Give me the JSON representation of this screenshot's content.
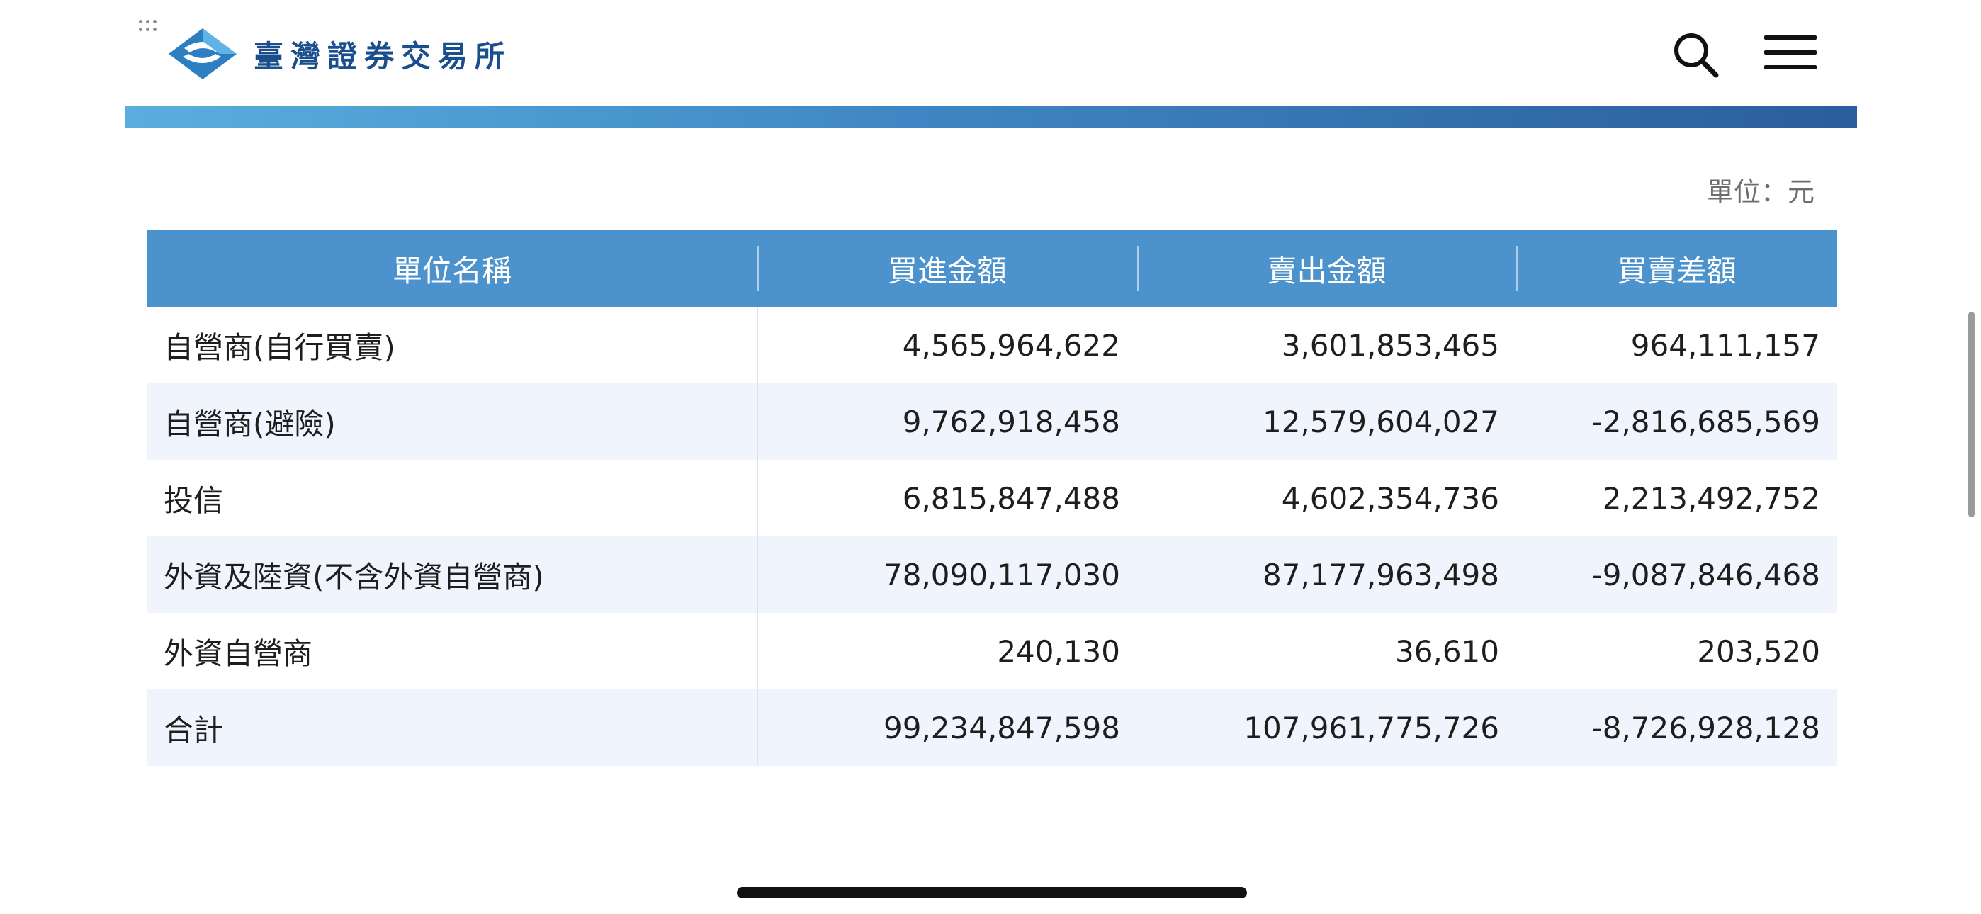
{
  "header": {
    "logo_text": "臺灣證券交易所",
    "logo_icon": "twse-logo-icon",
    "search_icon": "search-icon",
    "menu_icon": "hamburger-menu-icon"
  },
  "unit_label": "單位：元",
  "table": {
    "columns": [
      "單位名稱",
      "買進金額",
      "賣出金額",
      "買賣差額"
    ],
    "rows": [
      {
        "name": "自營商(自行買賣)",
        "buy": "4,565,964,622",
        "sell": "3,601,853,465",
        "diff": "964,111,157"
      },
      {
        "name": "自營商(避險)",
        "buy": "9,762,918,458",
        "sell": "12,579,604,027",
        "diff": "-2,816,685,569"
      },
      {
        "name": "投信",
        "buy": "6,815,847,488",
        "sell": "4,602,354,736",
        "diff": "2,213,492,752"
      },
      {
        "name": "外資及陸資(不含外資自營商)",
        "buy": "78,090,117,030",
        "sell": "87,177,963,498",
        "diff": "-9,087,846,468"
      },
      {
        "name": "外資自營商",
        "buy": "240,130",
        "sell": "36,610",
        "diff": "203,520"
      },
      {
        "name": "合計",
        "buy": "99,234,847,598",
        "sell": "107,961,775,726",
        "diff": "-8,726,928,128"
      }
    ]
  },
  "colors": {
    "header_bg": "#4c93cd",
    "alt_row_bg": "#f0f5fd",
    "brand_blue": "#1a4e8c"
  }
}
